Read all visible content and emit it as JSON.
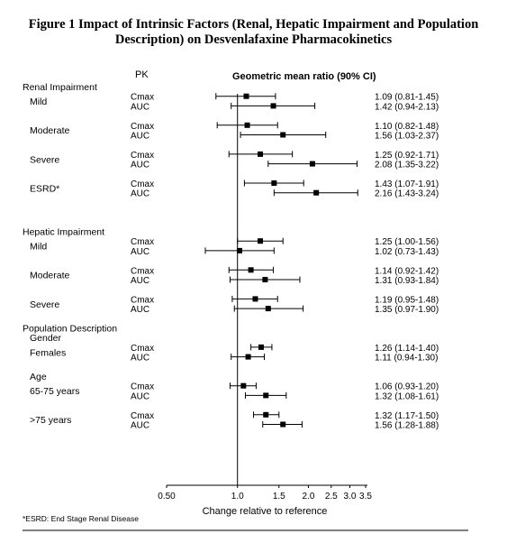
{
  "title_line1": "Figure 1 Impact of Intrinsic Factors (Renal, Hepatic Impairment and Population",
  "title_line2": "Description) on Desvenlafaxine Pharmacokinetics",
  "pk_header": "PK",
  "gmr_header": "Geometric mean ratio (90% CI)",
  "xlabel": "Change relative to reference",
  "footnote": "*ESRD: End Stage Renal Disease",
  "chart_data": {
    "type": "forest",
    "xscale": "log",
    "xlim": [
      0.5,
      3.5
    ],
    "reference_line": 1.0,
    "ticks": [
      {
        "v": 0.5,
        "label": "0.50"
      },
      {
        "v": 1.0,
        "label": "1.0"
      },
      {
        "v": 1.5,
        "label": "1.5"
      },
      {
        "v": 2.0,
        "label": "2.0"
      },
      {
        "v": 2.5,
        "label": "2.5"
      },
      {
        "v": 3.0,
        "label": "3.0"
      },
      {
        "v": 3.5,
        "label": "3.5"
      }
    ],
    "sections": [
      {
        "label": "Renal Impairment",
        "row": 0
      },
      {
        "label": "Hepatic Impairment",
        "row": 15
      },
      {
        "label": "Population Description",
        "row": 25
      },
      {
        "label": "Gender",
        "row": 26,
        "indent": true
      },
      {
        "label": "Age",
        "row": 30,
        "indent": true
      }
    ],
    "groups": [
      {
        "label": "Mild",
        "row": 1.5
      },
      {
        "label": "Moderate",
        "row": 4.5
      },
      {
        "label": "Severe",
        "row": 7.5
      },
      {
        "label": "ESRD*",
        "row": 10.5
      },
      {
        "label": "Mild",
        "row": 16.5
      },
      {
        "label": "Moderate",
        "row": 19.5
      },
      {
        "label": "Severe",
        "row": 22.5
      },
      {
        "label": "Females",
        "row": 27.5
      },
      {
        "label": "65-75 years",
        "row": 31.5
      },
      {
        "label": ">75 years",
        "row": 34.5
      }
    ],
    "rows": [
      {
        "row": 1,
        "pk": "Cmax",
        "est": 1.09,
        "lo": 0.81,
        "hi": 1.45,
        "label": "1.09 (0.81-1.45)"
      },
      {
        "row": 2,
        "pk": "AUC",
        "est": 1.42,
        "lo": 0.94,
        "hi": 2.13,
        "label": "1.42 (0.94-2.13)"
      },
      {
        "row": 4,
        "pk": "Cmax",
        "est": 1.1,
        "lo": 0.82,
        "hi": 1.48,
        "label": "1.10 (0.82-1.48)"
      },
      {
        "row": 5,
        "pk": "AUC",
        "est": 1.56,
        "lo": 1.03,
        "hi": 2.37,
        "label": "1.56 (1.03-2.37)"
      },
      {
        "row": 7,
        "pk": "Cmax",
        "est": 1.25,
        "lo": 0.92,
        "hi": 1.71,
        "label": "1.25 (0.92-1.71)"
      },
      {
        "row": 8,
        "pk": "AUC",
        "est": 2.08,
        "lo": 1.35,
        "hi": 3.22,
        "label": "2.08 (1.35-3.22)"
      },
      {
        "row": 10,
        "pk": "Cmax",
        "est": 1.43,
        "lo": 1.07,
        "hi": 1.91,
        "label": "1.43 (1.07-1.91)"
      },
      {
        "row": 11,
        "pk": "AUC",
        "est": 2.16,
        "lo": 1.43,
        "hi": 3.24,
        "label": "2.16 (1.43-3.24)"
      },
      {
        "row": 16,
        "pk": "Cmax",
        "est": 1.25,
        "lo": 1.0,
        "hi": 1.56,
        "label": "1.25 (1.00-1.56)"
      },
      {
        "row": 17,
        "pk": "AUC",
        "est": 1.02,
        "lo": 0.73,
        "hi": 1.43,
        "label": "1.02 (0.73-1.43)"
      },
      {
        "row": 19,
        "pk": "Cmax",
        "est": 1.14,
        "lo": 0.92,
        "hi": 1.42,
        "label": "1.14 (0.92-1.42)"
      },
      {
        "row": 20,
        "pk": "AUC",
        "est": 1.31,
        "lo": 0.93,
        "hi": 1.84,
        "label": "1.31 (0.93-1.84)"
      },
      {
        "row": 22,
        "pk": "Cmax",
        "est": 1.19,
        "lo": 0.95,
        "hi": 1.48,
        "label": "1.19 (0.95-1.48)"
      },
      {
        "row": 23,
        "pk": "AUC",
        "est": 1.35,
        "lo": 0.97,
        "hi": 1.9,
        "label": "1.35 (0.97-1.90)"
      },
      {
        "row": 27,
        "pk": "Cmax",
        "est": 1.26,
        "lo": 1.14,
        "hi": 1.4,
        "label": "1.26 (1.14-1.40)"
      },
      {
        "row": 28,
        "pk": "AUC",
        "est": 1.11,
        "lo": 0.94,
        "hi": 1.3,
        "label": "1.11 (0.94-1.30)"
      },
      {
        "row": 31,
        "pk": "Cmax",
        "est": 1.06,
        "lo": 0.93,
        "hi": 1.2,
        "label": "1.06 (0.93-1.20)"
      },
      {
        "row": 32,
        "pk": "AUC",
        "est": 1.32,
        "lo": 1.08,
        "hi": 1.61,
        "label": "1.32 (1.08-1.61)"
      },
      {
        "row": 34,
        "pk": "Cmax",
        "est": 1.32,
        "lo": 1.17,
        "hi": 1.5,
        "label": "1.32 (1.17-1.50)"
      },
      {
        "row": 35,
        "pk": "AUC",
        "est": 1.56,
        "lo": 1.28,
        "hi": 1.88,
        "label": "1.56 (1.28-1.88)"
      }
    ]
  }
}
